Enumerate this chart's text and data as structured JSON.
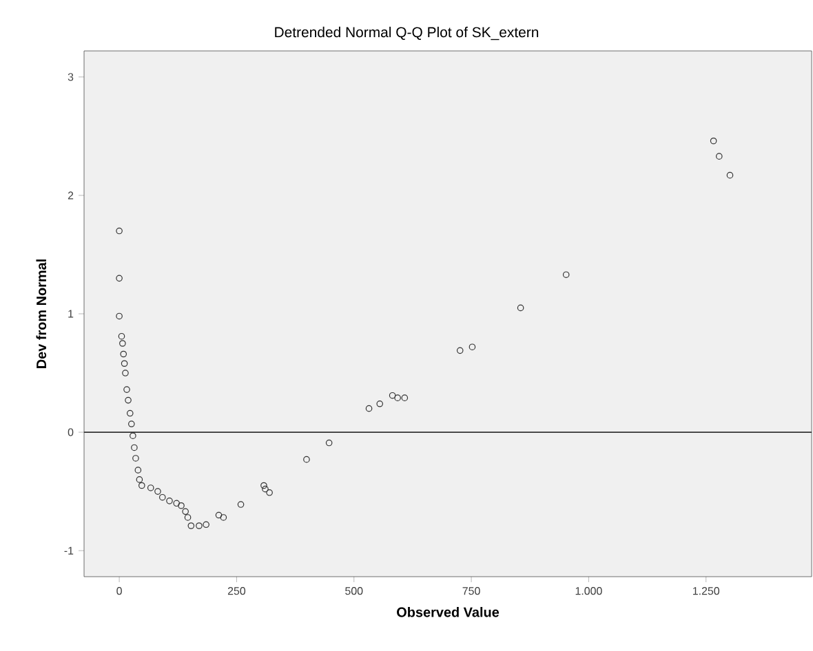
{
  "chart_data": {
    "type": "scatter",
    "title": "Detrended Normal Q-Q Plot of SK_extern",
    "xlabel": "Observed Value",
    "ylabel": "Dev from Normal",
    "xlim": [
      -75,
      1475
    ],
    "ylim": [
      -1.22,
      3.22
    ],
    "xticks": [
      0,
      250,
      500,
      {
        "value": 750,
        "label": "750"
      },
      {
        "value": 1000,
        "label": "1.000"
      },
      {
        "value": 1250,
        "label": "1.250"
      }
    ],
    "yticks": [
      -1,
      0,
      1,
      2,
      3
    ],
    "grid": false,
    "marker": "circle",
    "ref_lines": [
      {
        "axis": "y",
        "value": 0,
        "color": "#333333"
      }
    ],
    "series": [
      {
        "color": "#333333",
        "x": [
          0,
          0,
          0,
          5,
          7,
          9,
          11,
          13,
          16,
          19,
          23,
          26,
          29,
          32,
          35,
          40,
          43,
          48,
          67,
          82,
          92,
          107,
          122,
          132,
          141,
          146,
          153,
          170,
          185,
          212,
          222,
          259,
          308,
          311,
          320,
          399,
          447,
          532,
          555,
          582,
          593,
          608,
          726,
          752,
          855,
          952,
          1266,
          1278,
          1301
        ],
        "values": [
          1.7,
          1.3,
          0.98,
          0.81,
          0.75,
          0.66,
          0.58,
          0.5,
          0.36,
          0.27,
          0.16,
          0.07,
          -0.03,
          -0.13,
          -0.22,
          -0.32,
          -0.4,
          -0.45,
          -0.47,
          -0.5,
          -0.55,
          -0.58,
          -0.6,
          -0.62,
          -0.67,
          -0.72,
          -0.79,
          -0.79,
          -0.78,
          -0.7,
          -0.72,
          -0.61,
          -0.45,
          -0.48,
          -0.51,
          -0.23,
          -0.09,
          0.2,
          0.24,
          0.31,
          0.29,
          0.29,
          0.69,
          0.72,
          1.05,
          1.33,
          2.46,
          2.33,
          2.17
        ]
      }
    ]
  }
}
